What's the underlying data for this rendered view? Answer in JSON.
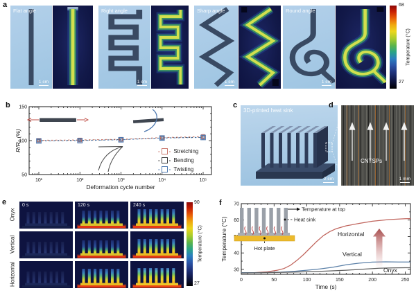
{
  "panels": {
    "a": {
      "label": "a",
      "items": [
        {
          "name": "Flat angle",
          "scale_bar": "1 cm"
        },
        {
          "name": "Right angle",
          "scale_bar": "1 cm"
        },
        {
          "name": "Sharp angle",
          "scale_bar": "1 cm"
        },
        {
          "name": "Round angle",
          "scale_bar": "1 cm"
        }
      ],
      "colorbar": {
        "max": "68",
        "min": "27",
        "label": "Temperature (°C)"
      }
    },
    "b": {
      "label": "b"
    },
    "c": {
      "label": "c",
      "title": "3D-printed heat sink",
      "scale_bar": "2 cm"
    },
    "d": {
      "label": "d",
      "annotation": "CNTSPs",
      "scale_bar": "1 mm"
    },
    "e": {
      "label": "e",
      "rows": [
        "Onyx",
        "Vertical",
        "Horizontal"
      ],
      "times": [
        "0 s",
        "120 s",
        "240 s"
      ],
      "colorbar": {
        "max": "90",
        "min": "27",
        "label": "Temperature (°C)"
      }
    },
    "f": {
      "label": "f",
      "inset": {
        "arrow_label": "Temperature at top",
        "sink_label": "Heat sink",
        "plate_label": "Hot plate"
      }
    }
  },
  "chart_data": [
    {
      "id": "deformation-cycles",
      "type": "scatter",
      "xscale": "log",
      "x": [
        10,
        100,
        1000,
        10000,
        100000
      ],
      "xtick_labels": [
        "10¹",
        "10²",
        "10³",
        "10⁴",
        "10⁵"
      ],
      "xlabel": "Deformation cycle number",
      "ylabel": "R/R₀ (%)",
      "ylim": [
        50,
        150
      ],
      "yticks": [
        50,
        100,
        150
      ],
      "series": [
        {
          "name": "Stretching",
          "color": "#c9766b",
          "values": [
            100.5,
            101,
            102,
            104.5,
            106
          ],
          "error": [
            2,
            2,
            2,
            2.5,
            3
          ]
        },
        {
          "name": "Bending",
          "color": "#3a3a3a",
          "values": [
            100,
            100.5,
            101.5,
            104,
            105
          ],
          "error": [
            1.5,
            1.5,
            2,
            2,
            2.5
          ]
        },
        {
          "name": "Twisting",
          "color": "#4e79b0",
          "values": [
            99.5,
            100,
            101.2,
            103.8,
            104.6
          ],
          "error": [
            1.8,
            1.8,
            2,
            2.2,
            2.5
          ]
        }
      ]
    },
    {
      "id": "heatsink-temperature",
      "type": "line",
      "xlabel": "Time (s)",
      "ylabel": "Temperature (°C)",
      "xlim": [
        0,
        258
      ],
      "ylim": [
        27,
        70
      ],
      "xticks": [
        0,
        50,
        100,
        150,
        200,
        250
      ],
      "yticks": [
        30,
        40,
        50,
        60,
        70
      ],
      "series": [
        {
          "name": "Horizontal",
          "color": "#c0645c",
          "x": [
            0,
            20,
            40,
            55,
            65,
            75,
            85,
            95,
            105,
            115,
            125,
            135,
            145,
            160,
            180,
            200,
            225,
            250,
            258
          ],
          "y": [
            28,
            28,
            28.5,
            29.5,
            30.5,
            32.5,
            35.5,
            39,
            43,
            47,
            50.5,
            53,
            54.8,
            56.5,
            58,
            59.3,
            60.3,
            60.8,
            60.9
          ]
        },
        {
          "name": "Vertical",
          "color": "#5b80a8",
          "x": [
            0,
            30,
            60,
            80,
            100,
            120,
            140,
            160,
            180,
            200,
            220,
            240,
            258
          ],
          "y": [
            28,
            28,
            28.3,
            28.8,
            29.5,
            30.3,
            31.3,
            32.8,
            33.8,
            34.4,
            34.6,
            34.5,
            34.5
          ]
        },
        {
          "name": "Onyx",
          "color": "#5f5f5f",
          "x": [
            0,
            40,
            80,
            120,
            160,
            190,
            210,
            230,
            250,
            258
          ],
          "y": [
            27.8,
            28,
            28.3,
            28.8,
            29.5,
            30.2,
            30.7,
            30.9,
            31,
            31
          ]
        }
      ]
    }
  ]
}
